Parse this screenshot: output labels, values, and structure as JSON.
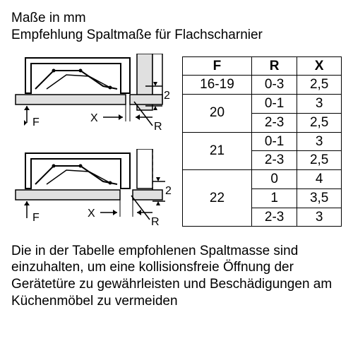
{
  "header": {
    "line1": "Maße in mm",
    "line2": "Empfehlung Spaltmaße für Flachscharnier"
  },
  "diagram": {
    "stroke": "#000000",
    "fill_light": "#e6e6e6",
    "fill_white": "#ffffff",
    "labels": {
      "F": "F",
      "X": "X",
      "R": "R",
      "two": "2"
    },
    "font_size": 16
  },
  "table": {
    "columns": [
      "F",
      "R",
      "X"
    ],
    "rows": [
      {
        "F": "16-19",
        "R": "0-3",
        "X": "2,5",
        "Fspan": 1
      },
      {
        "F": "20",
        "R": "0-1",
        "X": "3",
        "Fspan": 2
      },
      {
        "F": null,
        "R": "2-3",
        "X": "2,5",
        "Fspan": 0
      },
      {
        "F": "21",
        "R": "0-1",
        "X": "3",
        "Fspan": 2
      },
      {
        "F": null,
        "R": "2-3",
        "X": "2,5",
        "Fspan": 0
      },
      {
        "F": "22",
        "R": "0",
        "X": "4",
        "Fspan": 3
      },
      {
        "F": null,
        "R": "1",
        "X": "3,5",
        "Fspan": 0
      },
      {
        "F": null,
        "R": "2-3",
        "X": "3",
        "Fspan": 0
      }
    ],
    "border_color": "#000000",
    "font_size": 19
  },
  "footer": {
    "text": "Die in der Tabelle empfohlenen Spaltmasse sind einzuhalten, um eine kollisionsfreie Öffnung der Gerätetüre zu gewährleisten und Beschädigungen am Küchenmöbel zu vermeiden"
  }
}
